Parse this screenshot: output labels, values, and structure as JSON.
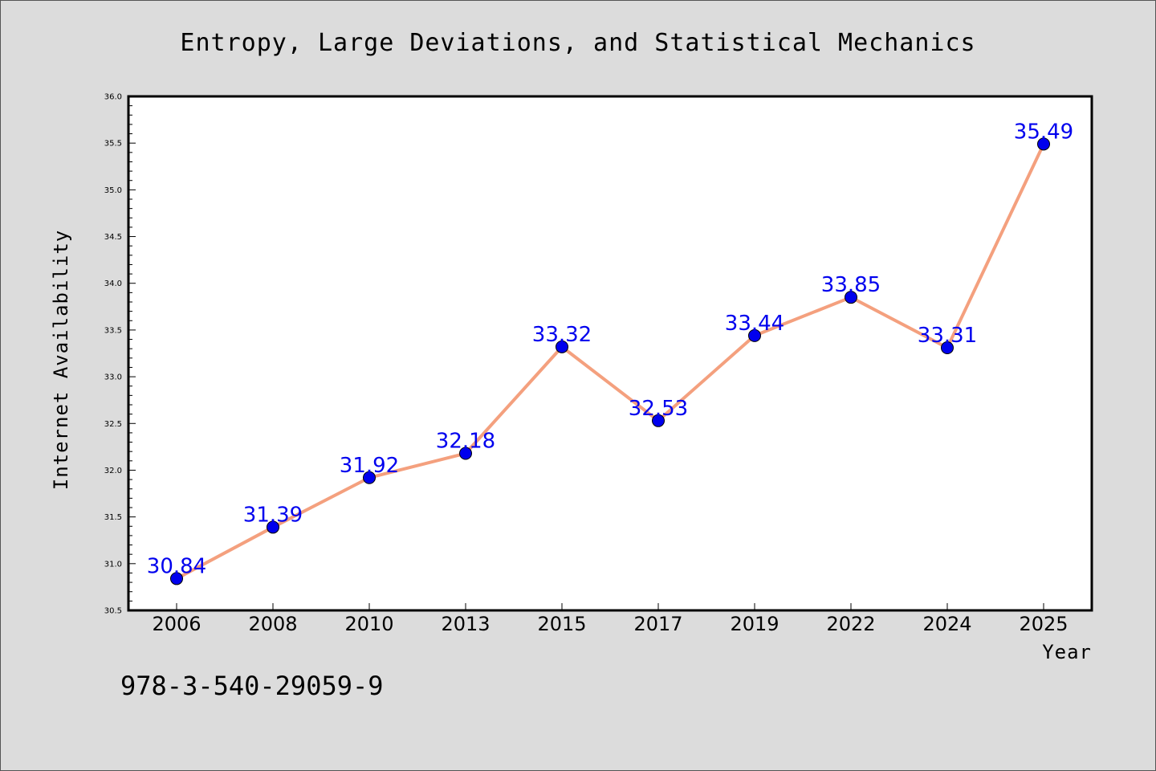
{
  "chart_data": {
    "type": "line",
    "title": "Entropy, Large Deviations, and Statistical Mechanics",
    "xlabel": "Year",
    "ylabel": "Internet Availability",
    "categories": [
      "2006",
      "2008",
      "2010",
      "2013",
      "2015",
      "2017",
      "2019",
      "2022",
      "2024",
      "2025"
    ],
    "series": [
      {
        "values": [
          30.84,
          31.39,
          31.92,
          32.18,
          33.32,
          32.53,
          33.44,
          33.85,
          33.31,
          35.49
        ],
        "data_labels": [
          "30.84",
          "31.39",
          "31.92",
          "32.18",
          "33.32",
          "32.53",
          "33.44",
          "33.85",
          "33.31",
          "35.49"
        ]
      }
    ],
    "ylim": [
      30.5,
      36.0
    ],
    "yticks": [
      "30.5",
      "31.0",
      "31.5",
      "32.0",
      "32.5",
      "33.0",
      "33.5",
      "34.0",
      "34.5",
      "35.0",
      "35.5",
      "36.0"
    ],
    "grid": false,
    "colors": {
      "line": "#f4a07e",
      "marker": "#0000ee",
      "label": "#0000ee",
      "background": "#dcdcdc",
      "plot_background": "#ffffff"
    }
  },
  "footer": {
    "isbn": "978-3-540-29059-9"
  }
}
